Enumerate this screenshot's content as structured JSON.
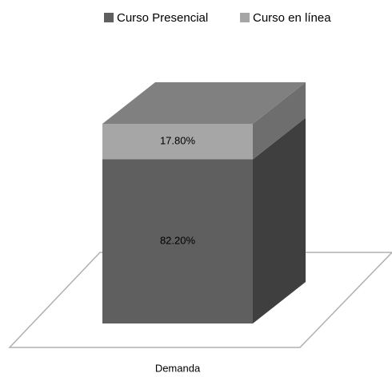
{
  "chart_data": {
    "type": "bar3d-stacked",
    "categories": [
      "Demanda"
    ],
    "series": [
      {
        "name": "Curso Presencial",
        "color": "#5f5f5f",
        "values": [
          82.2
        ],
        "value_labels": [
          "82.20%"
        ]
      },
      {
        "name": "Curso en línea",
        "color": "#a6a6a6",
        "values": [
          17.8
        ],
        "value_labels": [
          "17.80%"
        ]
      }
    ],
    "legend": "top"
  }
}
